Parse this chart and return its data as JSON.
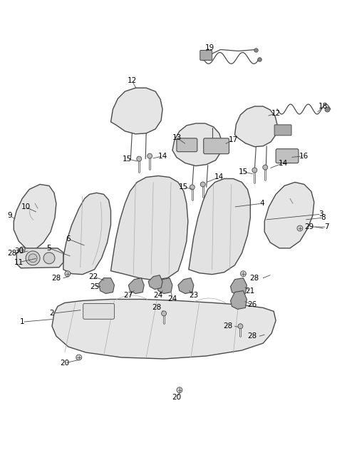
{
  "bg_color": "#ffffff",
  "line_color": "#4a4a4a",
  "label_color": "#000000",
  "fig_width": 4.8,
  "fig_height": 6.56,
  "dpi": 100,
  "line_width": 0.9,
  "fill_light": "#e8e8e8",
  "fill_mid": "#d8d8d8",
  "fill_dark": "#c8c8c8"
}
